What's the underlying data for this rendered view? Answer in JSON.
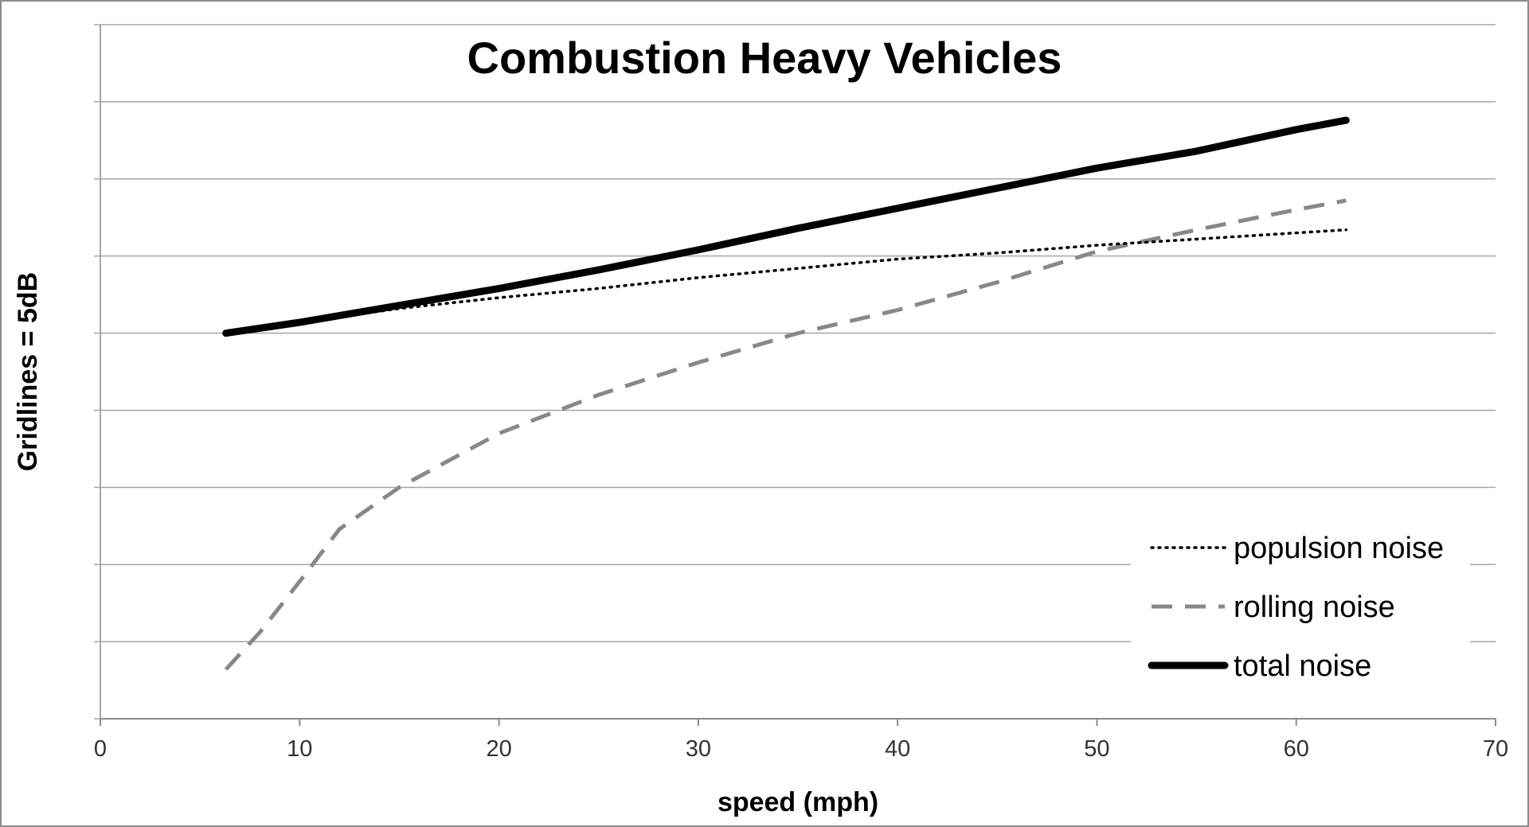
{
  "chart_data": {
    "type": "line",
    "title": "Combustion Heavy Vehicles",
    "xlabel": "speed (mph)",
    "ylabel": "Gridlines = 5dB",
    "xlim": [
      0,
      70
    ],
    "x_ticks": [
      "0",
      "10",
      "20",
      "30",
      "40",
      "50",
      "60",
      "70"
    ],
    "ylim": [
      0,
      45
    ],
    "y_tick_labels_shown": false,
    "grid": true,
    "legend_position": "bottom-right",
    "series": [
      {
        "name": "populsion noise",
        "style": "dotted",
        "color": "#000000",
        "x": [
          6.3,
          10,
          15,
          20,
          25,
          30,
          35,
          40,
          45,
          50,
          55,
          60,
          62.5
        ],
        "y": [
          25.0,
          25.7,
          26.6,
          27.3,
          27.9,
          28.6,
          29.2,
          29.8,
          30.2,
          30.7,
          31.1,
          31.5,
          31.7
        ]
      },
      {
        "name": "rolling noise",
        "style": "dashed",
        "color": "#888888",
        "x": [
          6.3,
          8,
          10,
          12,
          15,
          20,
          25,
          30,
          35,
          40,
          45,
          50,
          55,
          60,
          62.5
        ],
        "y": [
          3.2,
          5.6,
          8.9,
          12.3,
          15.0,
          18.5,
          21.0,
          23.1,
          25.0,
          26.5,
          28.3,
          30.3,
          31.7,
          33.0,
          33.6
        ]
      },
      {
        "name": "total noise",
        "style": "solid-thick",
        "color": "#000000",
        "x": [
          6.3,
          10,
          15,
          20,
          25,
          30,
          35,
          40,
          45,
          50,
          55,
          60,
          62.5
        ],
        "y": [
          25.0,
          25.7,
          26.8,
          27.9,
          29.1,
          30.4,
          31.8,
          33.1,
          34.4,
          35.7,
          36.8,
          38.2,
          38.8
        ]
      }
    ]
  }
}
